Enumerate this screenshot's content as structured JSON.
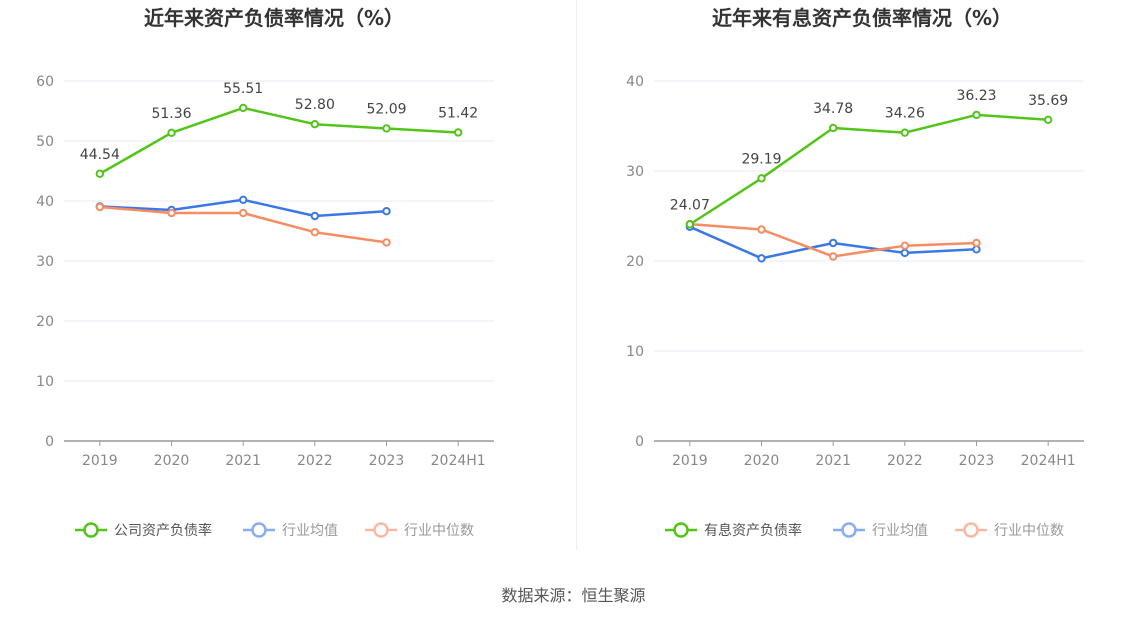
{
  "source": "数据来源：恒生聚源",
  "colors": {
    "company": "#52c41a",
    "average": "#3b78e7",
    "median": "#f58c62",
    "grid": "#e8ebf5",
    "axis": "#999999"
  },
  "chart_data": [
    {
      "type": "line",
      "title": "近年来资产负债率情况（%）",
      "categories": [
        "2019",
        "2020",
        "2021",
        "2022",
        "2023",
        "2024H1"
      ],
      "ylim": [
        0,
        60
      ],
      "yticks": [
        0,
        10,
        20,
        30,
        40,
        50,
        60
      ],
      "grid": true,
      "legend_position": "bottom-center",
      "series": [
        {
          "name": "公司资产负债率",
          "color": "#52c41a",
          "values": [
            44.54,
            51.36,
            55.51,
            52.8,
            52.09,
            51.42
          ],
          "labels": [
            "44.54",
            "51.36",
            "55.51",
            "52.80",
            "52.09",
            "51.42"
          ]
        },
        {
          "name": "行业均值",
          "color": "#3b78e7",
          "values": [
            39.1,
            38.5,
            40.2,
            37.5,
            38.3,
            null
          ],
          "labels": null
        },
        {
          "name": "行业中位数",
          "color": "#f58c62",
          "values": [
            39.0,
            38.0,
            38.0,
            34.8,
            33.1,
            null
          ],
          "labels": null
        }
      ]
    },
    {
      "type": "line",
      "title": "近年来有息资产负债率情况（%）",
      "categories": [
        "2019",
        "2020",
        "2021",
        "2022",
        "2023",
        "2024H1"
      ],
      "ylim": [
        0,
        40
      ],
      "yticks": [
        0,
        10,
        20,
        30,
        40
      ],
      "grid": true,
      "legend_position": "bottom-center",
      "series": [
        {
          "name": "有息资产负债率",
          "color": "#52c41a",
          "values": [
            24.07,
            29.19,
            34.78,
            34.26,
            36.23,
            35.69
          ],
          "labels": [
            "24.07",
            "29.19",
            "34.78",
            "34.26",
            "36.23",
            "35.69"
          ]
        },
        {
          "name": "行业均值",
          "color": "#3b78e7",
          "values": [
            23.8,
            20.3,
            22.0,
            20.9,
            21.3,
            null
          ],
          "labels": null
        },
        {
          "name": "行业中位数",
          "color": "#f58c62",
          "values": [
            24.1,
            23.5,
            20.5,
            21.7,
            22.0,
            null
          ],
          "labels": null
        }
      ]
    }
  ]
}
